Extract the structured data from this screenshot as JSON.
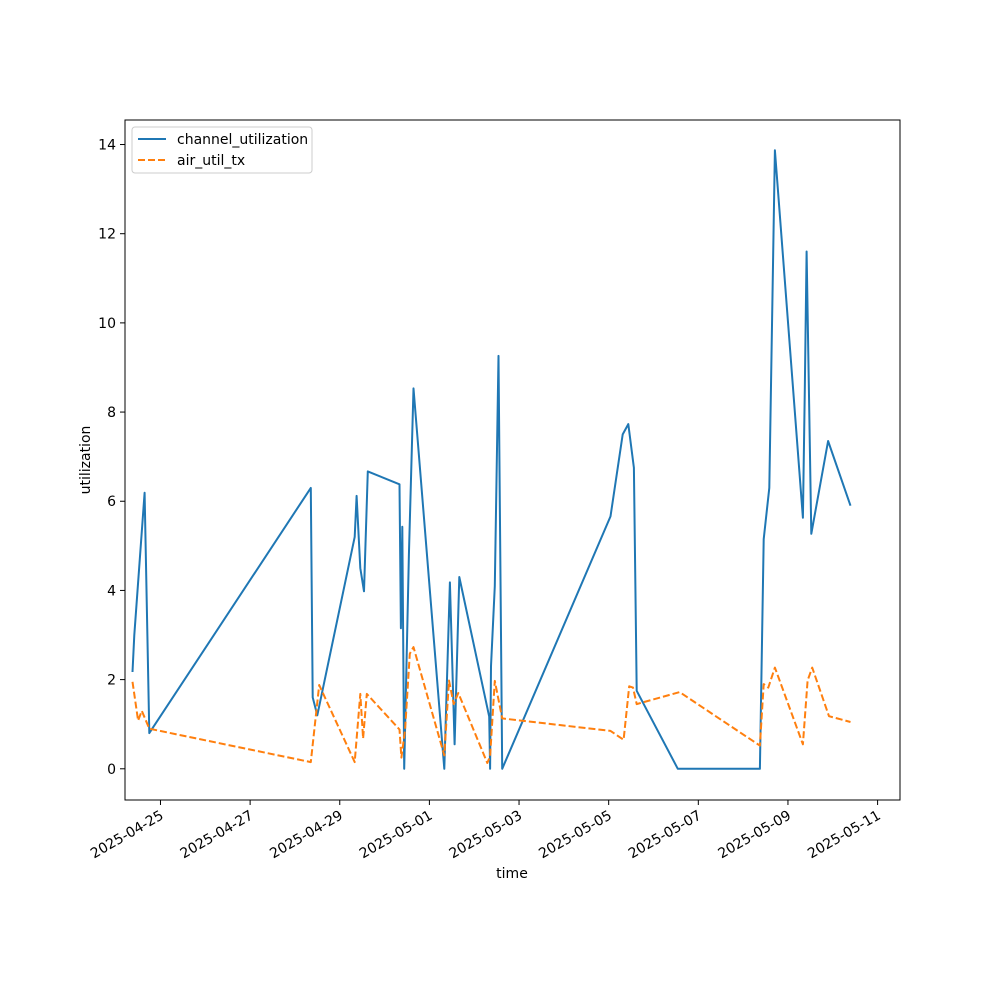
{
  "chart_data": {
    "type": "line",
    "xlabel": "time",
    "ylabel": "utilization",
    "x_tick_labels": [
      "2025-04-25",
      "2025-04-27",
      "2025-04-29",
      "2025-05-01",
      "2025-05-03",
      "2025-05-05",
      "2025-05-07",
      "2025-05-09",
      "2025-05-11"
    ],
    "y_tick_labels": [
      "0",
      "2",
      "4",
      "6",
      "8",
      "10",
      "12",
      "14"
    ],
    "xlim": [
      "2025-04-24T05:00",
      "2025-05-11T12:00"
    ],
    "ylim": [
      -0.7,
      14.55
    ],
    "legend": "top-left",
    "grid": false,
    "series": [
      {
        "name": "channel_utilization",
        "color": "#1f77b4",
        "dash": "solid",
        "points": [
          [
            "2025-04-24T09:00",
            2.17
          ],
          [
            "2025-04-24T10:00",
            3.0
          ],
          [
            "2025-04-24T15:30",
            6.19
          ],
          [
            "2025-04-24T18:00",
            0.8
          ],
          [
            "2025-04-28T08:30",
            6.3
          ],
          [
            "2025-04-28T09:30",
            1.6
          ],
          [
            "2025-04-28T12:00",
            1.2
          ],
          [
            "2025-04-29T08:00",
            5.2
          ],
          [
            "2025-04-29T09:00",
            6.12
          ],
          [
            "2025-04-29T11:00",
            4.5
          ],
          [
            "2025-04-29T13:00",
            3.98
          ],
          [
            "2025-04-29T15:00",
            6.67
          ],
          [
            "2025-04-30T08:00",
            6.38
          ],
          [
            "2025-04-30T08:45",
            3.15
          ],
          [
            "2025-04-30T09:30",
            5.43
          ],
          [
            "2025-04-30T10:30",
            0.0
          ],
          [
            "2025-04-30T13:00",
            4.8
          ],
          [
            "2025-04-30T15:30",
            8.53
          ],
          [
            "2025-05-01T08:00",
            0.0
          ],
          [
            "2025-05-01T11:00",
            4.18
          ],
          [
            "2025-05-01T13:30",
            0.55
          ],
          [
            "2025-05-01T16:00",
            4.3
          ],
          [
            "2025-05-02T08:00",
            1.17
          ],
          [
            "2025-05-02T08:30",
            0.0
          ],
          [
            "2025-05-02T09:00",
            2.3
          ],
          [
            "2025-05-02T11:00",
            4.1
          ],
          [
            "2025-05-02T13:00",
            9.26
          ],
          [
            "2025-05-02T15:00",
            0.0
          ],
          [
            "2025-05-05T01:00",
            5.66
          ],
          [
            "2025-05-05T07:30",
            7.5
          ],
          [
            "2025-05-05T10:30",
            7.73
          ],
          [
            "2025-05-05T13:30",
            6.75
          ],
          [
            "2025-05-05T15:00",
            1.75
          ],
          [
            "2025-05-06T13:00",
            0.0
          ],
          [
            "2025-05-08T09:00",
            0.0
          ],
          [
            "2025-05-08T11:00",
            5.15
          ],
          [
            "2025-05-08T14:00",
            6.3
          ],
          [
            "2025-05-08T17:00",
            13.87
          ],
          [
            "2025-05-09T08:00",
            5.63
          ],
          [
            "2025-05-09T09:00",
            8.5
          ],
          [
            "2025-05-09T10:00",
            11.6
          ],
          [
            "2025-05-09T12:30",
            5.27
          ],
          [
            "2025-05-09T21:30",
            7.35
          ],
          [
            "2025-05-10T09:30",
            5.9
          ]
        ]
      },
      {
        "name": "air_util_tx",
        "color": "#ff7f0e",
        "dash": "dashed",
        "points": [
          [
            "2025-04-24T09:00",
            1.95
          ],
          [
            "2025-04-24T12:00",
            1.08
          ],
          [
            "2025-04-24T14:00",
            1.3
          ],
          [
            "2025-04-24T18:00",
            0.9
          ],
          [
            "2025-04-28T08:30",
            0.15
          ],
          [
            "2025-04-28T13:00",
            1.88
          ],
          [
            "2025-04-29T08:00",
            0.15
          ],
          [
            "2025-04-29T11:00",
            1.68
          ],
          [
            "2025-04-29T12:30",
            0.68
          ],
          [
            "2025-04-29T14:30",
            1.68
          ],
          [
            "2025-04-30T08:00",
            0.88
          ],
          [
            "2025-04-30T09:00",
            0.25
          ],
          [
            "2025-04-30T11:00",
            0.88
          ],
          [
            "2025-04-30T13:30",
            2.58
          ],
          [
            "2025-04-30T15:30",
            2.73
          ],
          [
            "2025-05-01T08:00",
            0.3
          ],
          [
            "2025-05-01T10:30",
            1.98
          ],
          [
            "2025-05-01T13:00",
            1.45
          ],
          [
            "2025-05-01T15:30",
            1.7
          ],
          [
            "2025-05-02T07:00",
            0.13
          ],
          [
            "2025-05-02T08:30",
            0.28
          ],
          [
            "2025-05-02T11:00",
            1.97
          ],
          [
            "2025-05-02T15:00",
            1.13
          ],
          [
            "2025-05-05T01:00",
            0.85
          ],
          [
            "2025-05-05T08:00",
            0.65
          ],
          [
            "2025-05-05T11:00",
            1.85
          ],
          [
            "2025-05-05T13:00",
            1.82
          ],
          [
            "2025-05-05T15:00",
            1.45
          ],
          [
            "2025-05-06T14:00",
            1.72
          ],
          [
            "2025-05-08T09:00",
            0.52
          ],
          [
            "2025-05-08T11:00",
            1.9
          ],
          [
            "2025-05-08T13:30",
            1.82
          ],
          [
            "2025-05-08T17:00",
            2.27
          ],
          [
            "2025-05-09T08:00",
            0.55
          ],
          [
            "2025-05-09T10:30",
            1.98
          ],
          [
            "2025-05-09T13:00",
            2.27
          ],
          [
            "2025-05-09T22:00",
            1.18
          ],
          [
            "2025-05-10T09:30",
            1.05
          ]
        ]
      }
    ]
  }
}
